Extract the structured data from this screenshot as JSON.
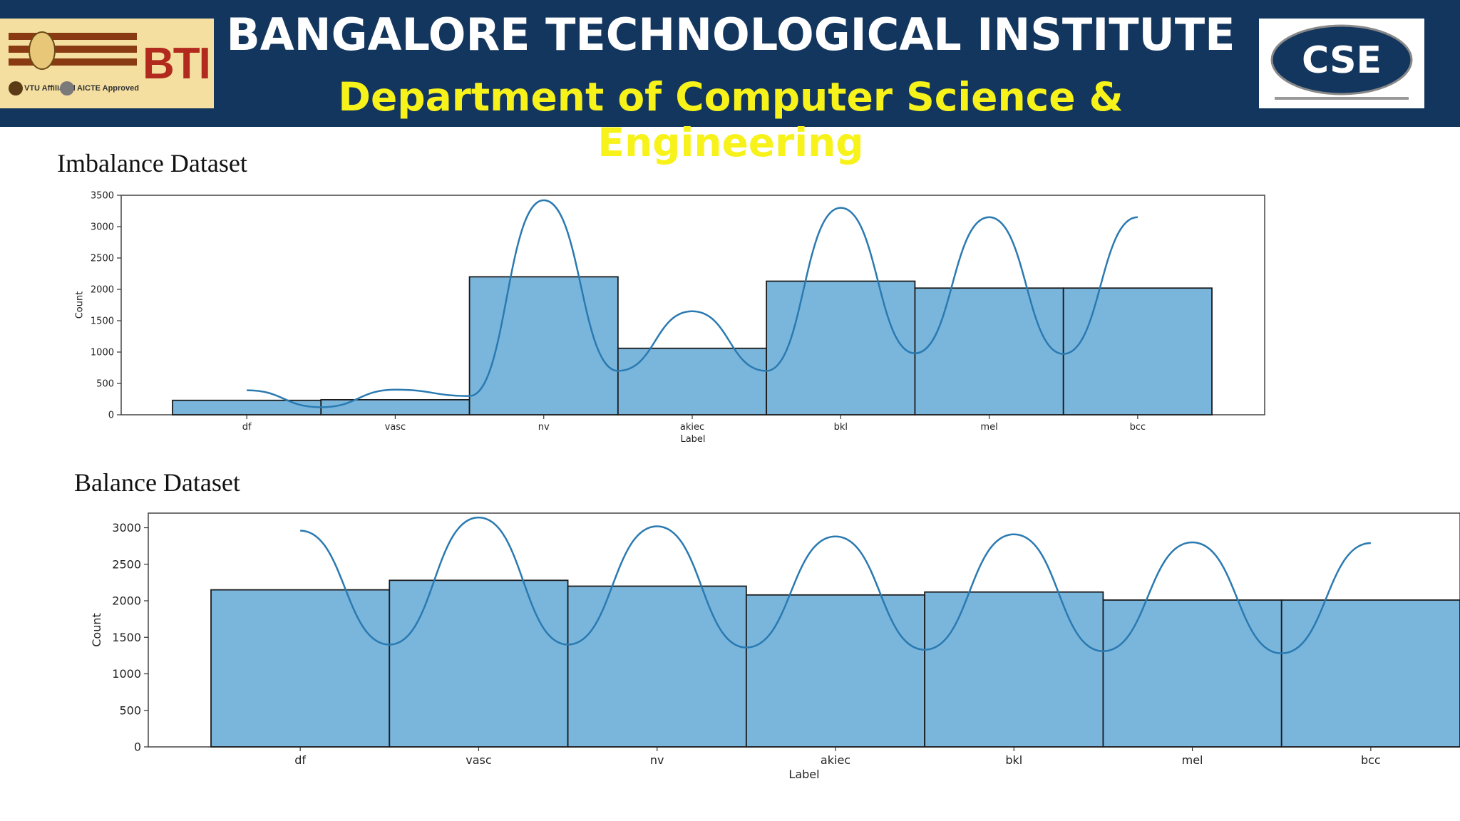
{
  "header": {
    "title": "BANGALORE TECHNOLOGICAL INSTITUTE",
    "subtitle": "Department of Computer Science  & Engineering",
    "left_logo_text": "BTI",
    "left_logo_small1": "VTU Affiliated",
    "left_logo_small2": "AICTE Approved",
    "right_logo_text": "CSE",
    "colors": {
      "bar": "#13365e",
      "subtitle": "#f7f21a"
    }
  },
  "sections": {
    "imbalance": "Imbalance Dataset",
    "balance": "Balance Dataset"
  },
  "chart_data": [
    {
      "type": "bar",
      "title": "",
      "xlabel": "Label",
      "ylabel": "Count",
      "categories": [
        "df",
        "vasc",
        "nv",
        "akiec",
        "bkl",
        "mel",
        "bcc"
      ],
      "values": [
        230,
        240,
        2200,
        1060,
        2130,
        2020,
        2020
      ],
      "kde": [
        390,
        400,
        3420,
        1650,
        3300,
        3150,
        3150
      ],
      "kde_troughs": [
        120,
        300,
        700,
        700,
        980,
        970
      ],
      "ylim": [
        0,
        3500
      ],
      "yticks": [
        0,
        500,
        1000,
        1500,
        2000,
        2500,
        3000,
        3500
      ],
      "color": "#7ab6dc",
      "line_color": "#2a7ab1"
    },
    {
      "type": "bar",
      "title": "",
      "xlabel": "Label",
      "ylabel": "Count",
      "categories": [
        "df",
        "vasc",
        "nv",
        "akiec",
        "bkl",
        "mel",
        "bcc"
      ],
      "values": [
        2150,
        2280,
        2200,
        2080,
        2120,
        2010,
        2010
      ],
      "kde": [
        2960,
        3140,
        3020,
        2880,
        2910,
        2800,
        2790
      ],
      "kde_troughs": [
        1400,
        1400,
        1360,
        1330,
        1310,
        1280
      ],
      "ylim": [
        0,
        3200
      ],
      "yticks": [
        0,
        500,
        1000,
        1500,
        2000,
        2500,
        3000
      ],
      "color": "#7ab6dc",
      "line_color": "#2a7ab1"
    }
  ]
}
